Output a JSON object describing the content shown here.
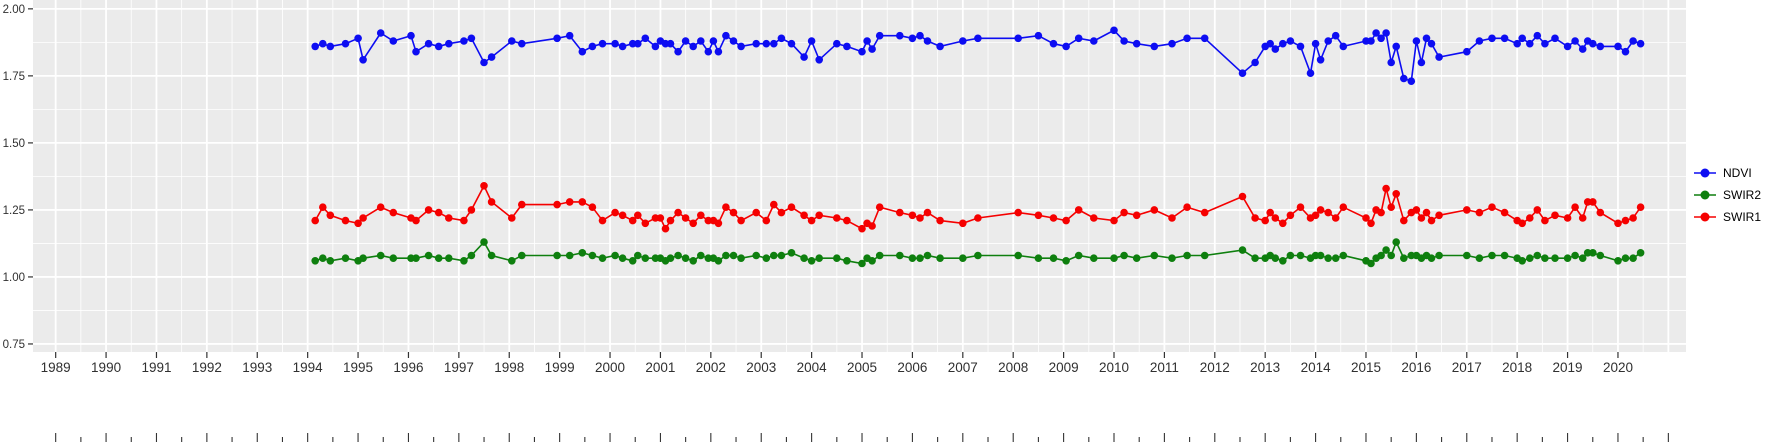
{
  "chart_data": {
    "type": "line",
    "title": "",
    "xlabel": "",
    "ylabel": "",
    "panel_color": "#EBEBEB",
    "grid_color": "#FFFFFF",
    "axis_text_color": "#303030",
    "xlim": [
      1988.55,
      2021.35
    ],
    "ylim": [
      0.72,
      2.033
    ],
    "x_axis": {
      "tick_values": [
        1989,
        1990,
        1991,
        1992,
        1993,
        1994,
        1995,
        1996,
        1997,
        1998,
        1999,
        2000,
        2001,
        2002,
        2003,
        2004,
        2005,
        2006,
        2007,
        2008,
        2009,
        2010,
        2011,
        2012,
        2013,
        2014,
        2015,
        2016,
        2017,
        2018,
        2019,
        2020
      ],
      "tick_labels": [
        "1989",
        "1990",
        "1991",
        "1992",
        "1993",
        "1994",
        "1995",
        "1996",
        "1997",
        "1998",
        "1999",
        "2000",
        "2001",
        "2002",
        "2003",
        "2004",
        "2005",
        "2006",
        "2007",
        "2008",
        "2009",
        "2010",
        "2011",
        "2012",
        "2013",
        "2014",
        "2015",
        "2016",
        "2017",
        "2018",
        "2019",
        "2020"
      ]
    },
    "y_axis": {
      "tick_values": [
        2.0,
        1.75,
        1.5,
        1.25,
        1.0,
        0.75
      ],
      "tick_labels": [
        "2.00",
        "1.75",
        "1.50",
        "1.25",
        "1.00",
        "0.75"
      ]
    },
    "x": [
      1994.15,
      1994.3,
      1994.45,
      1994.75,
      1995.0,
      1995.1,
      1995.45,
      1995.7,
      1996.05,
      1996.15,
      1996.4,
      1996.6,
      1996.8,
      1997.1,
      1997.25,
      1997.5,
      1997.65,
      1998.05,
      1998.25,
      1998.95,
      1999.2,
      1999.45,
      1999.65,
      1999.85,
      2000.1,
      2000.25,
      2000.45,
      2000.55,
      2000.7,
      2000.9,
      2001.0,
      2001.1,
      2001.2,
      2001.35,
      2001.5,
      2001.65,
      2001.8,
      2001.95,
      2002.05,
      2002.15,
      2002.3,
      2002.45,
      2002.6,
      2002.9,
      2003.1,
      2003.25,
      2003.4,
      2003.6,
      2003.85,
      2004.0,
      2004.15,
      2004.5,
      2004.7,
      2005.0,
      2005.1,
      2005.2,
      2005.35,
      2005.75,
      2006.0,
      2006.15,
      2006.3,
      2006.55,
      2007.0,
      2007.3,
      2008.1,
      2008.5,
      2008.8,
      2009.05,
      2009.3,
      2009.6,
      2010.0,
      2010.2,
      2010.45,
      2010.8,
      2011.15,
      2011.45,
      2011.8,
      2012.55,
      2012.8,
      2013.0,
      2013.1,
      2013.2,
      2013.35,
      2013.5,
      2013.7,
      2013.9,
      2014.0,
      2014.1,
      2014.25,
      2014.4,
      2014.55,
      2015.0,
      2015.1,
      2015.2,
      2015.3,
      2015.4,
      2015.5,
      2015.6,
      2015.75,
      2015.9,
      2016.0,
      2016.1,
      2016.2,
      2016.3,
      2016.45,
      2017.0,
      2017.25,
      2017.5,
      2017.75,
      2018.0,
      2018.1,
      2018.25,
      2018.4,
      2018.55,
      2018.75,
      2019.0,
      2019.15,
      2019.3,
      2019.4,
      2019.5,
      2019.65,
      2020.0,
      2020.15,
      2020.3,
      2020.45
    ],
    "series": [
      {
        "name": "NDVI",
        "color": "#0d0df2",
        "values": [
          1.86,
          1.87,
          1.86,
          1.87,
          1.89,
          1.81,
          1.91,
          1.88,
          1.9,
          1.84,
          1.87,
          1.86,
          1.87,
          1.88,
          1.89,
          1.8,
          1.82,
          1.88,
          1.87,
          1.89,
          1.9,
          1.84,
          1.86,
          1.87,
          1.87,
          1.86,
          1.87,
          1.87,
          1.89,
          1.86,
          1.88,
          1.87,
          1.87,
          1.84,
          1.88,
          1.86,
          1.88,
          1.84,
          1.88,
          1.84,
          1.9,
          1.88,
          1.86,
          1.87,
          1.87,
          1.87,
          1.89,
          1.87,
          1.82,
          1.88,
          1.81,
          1.87,
          1.86,
          1.84,
          1.88,
          1.85,
          1.9,
          1.9,
          1.89,
          1.9,
          1.88,
          1.86,
          1.88,
          1.89,
          1.89,
          1.9,
          1.87,
          1.86,
          1.89,
          1.88,
          1.92,
          1.88,
          1.87,
          1.86,
          1.87,
          1.89,
          1.89,
          1.76,
          1.8,
          1.86,
          1.87,
          1.85,
          1.87,
          1.88,
          1.86,
          1.76,
          1.87,
          1.81,
          1.88,
          1.9,
          1.86,
          1.88,
          1.88,
          1.91,
          1.89,
          1.91,
          1.8,
          1.86,
          1.74,
          1.73,
          1.88,
          1.8,
          1.89,
          1.87,
          1.82,
          1.84,
          1.88,
          1.89,
          1.89,
          1.87,
          1.89,
          1.87,
          1.9,
          1.87,
          1.89,
          1.86,
          1.88,
          1.85,
          1.88,
          1.87,
          1.86,
          1.86,
          1.84,
          1.88,
          1.87
        ]
      },
      {
        "name": "SWIR2",
        "color": "#0e7f0e",
        "values": [
          1.06,
          1.07,
          1.06,
          1.07,
          1.06,
          1.07,
          1.08,
          1.07,
          1.07,
          1.07,
          1.08,
          1.07,
          1.07,
          1.06,
          1.08,
          1.13,
          1.08,
          1.06,
          1.08,
          1.08,
          1.08,
          1.09,
          1.08,
          1.07,
          1.08,
          1.07,
          1.06,
          1.08,
          1.07,
          1.07,
          1.07,
          1.06,
          1.07,
          1.08,
          1.07,
          1.06,
          1.08,
          1.07,
          1.07,
          1.06,
          1.08,
          1.08,
          1.07,
          1.08,
          1.07,
          1.08,
          1.08,
          1.09,
          1.07,
          1.06,
          1.07,
          1.07,
          1.06,
          1.05,
          1.07,
          1.06,
          1.08,
          1.08,
          1.07,
          1.07,
          1.08,
          1.07,
          1.07,
          1.08,
          1.08,
          1.07,
          1.07,
          1.06,
          1.08,
          1.07,
          1.07,
          1.08,
          1.07,
          1.08,
          1.07,
          1.08,
          1.08,
          1.1,
          1.07,
          1.07,
          1.08,
          1.07,
          1.06,
          1.08,
          1.08,
          1.07,
          1.08,
          1.08,
          1.07,
          1.07,
          1.08,
          1.06,
          1.05,
          1.07,
          1.08,
          1.1,
          1.08,
          1.13,
          1.07,
          1.08,
          1.08,
          1.07,
          1.08,
          1.07,
          1.08,
          1.08,
          1.07,
          1.08,
          1.08,
          1.07,
          1.06,
          1.07,
          1.08,
          1.07,
          1.07,
          1.07,
          1.08,
          1.07,
          1.09,
          1.09,
          1.08,
          1.06,
          1.07,
          1.07,
          1.09
        ]
      },
      {
        "name": "SWIR1",
        "color": "#f50000",
        "values": [
          1.21,
          1.26,
          1.23,
          1.21,
          1.2,
          1.22,
          1.26,
          1.24,
          1.22,
          1.21,
          1.25,
          1.24,
          1.22,
          1.21,
          1.25,
          1.34,
          1.28,
          1.22,
          1.27,
          1.27,
          1.28,
          1.28,
          1.26,
          1.21,
          1.24,
          1.23,
          1.21,
          1.23,
          1.2,
          1.22,
          1.22,
          1.18,
          1.21,
          1.24,
          1.22,
          1.2,
          1.23,
          1.21,
          1.21,
          1.2,
          1.26,
          1.24,
          1.21,
          1.24,
          1.21,
          1.27,
          1.24,
          1.26,
          1.23,
          1.21,
          1.23,
          1.22,
          1.21,
          1.18,
          1.2,
          1.19,
          1.26,
          1.24,
          1.23,
          1.22,
          1.24,
          1.21,
          1.2,
          1.22,
          1.24,
          1.23,
          1.22,
          1.21,
          1.25,
          1.22,
          1.21,
          1.24,
          1.23,
          1.25,
          1.22,
          1.26,
          1.24,
          1.3,
          1.22,
          1.21,
          1.24,
          1.22,
          1.2,
          1.23,
          1.26,
          1.22,
          1.23,
          1.25,
          1.24,
          1.22,
          1.26,
          1.22,
          1.2,
          1.25,
          1.24,
          1.33,
          1.26,
          1.31,
          1.21,
          1.24,
          1.25,
          1.22,
          1.24,
          1.21,
          1.23,
          1.25,
          1.24,
          1.26,
          1.24,
          1.21,
          1.2,
          1.22,
          1.25,
          1.21,
          1.23,
          1.22,
          1.26,
          1.22,
          1.28,
          1.28,
          1.24,
          1.2,
          1.21,
          1.22,
          1.26
        ]
      }
    ],
    "legend": {
      "position": "right",
      "entries": [
        {
          "label": "NDVI",
          "color": "#0d0df2"
        },
        {
          "label": "SWIR2",
          "color": "#0e7f0e"
        },
        {
          "label": "SWIR1",
          "color": "#f50000"
        }
      ]
    }
  }
}
